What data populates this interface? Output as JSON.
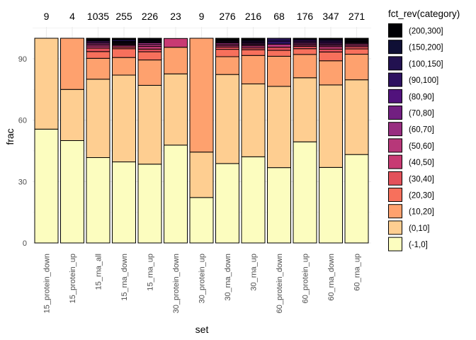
{
  "chart_data": {
    "type": "bar",
    "stacked": true,
    "xlabel": "set",
    "ylabel": "frac",
    "ylim": [
      0,
      100
    ],
    "yticks": [
      0,
      30,
      60,
      90
    ],
    "grid": true,
    "legend_position": "right",
    "legend_title": "fct_rev(category)",
    "categories": [
      "15_protein_down",
      "15_protein_up",
      "15_rna_all",
      "15_rna_down",
      "15_rna_up",
      "30_protein_down",
      "30_protein_up",
      "30_rna_down",
      "30_rna_up",
      "60_protein_down",
      "60_protein_up",
      "60_rna_down",
      "60_rna_up"
    ],
    "top_labels": [
      "9",
      "4",
      "1035",
      "255",
      "226",
      "23",
      "9",
      "276",
      "216",
      "68",
      "176",
      "347",
      "271"
    ],
    "series": [
      {
        "name": "(-1,0]",
        "color": "#FCFDBF",
        "values": [
          55.6,
          50.0,
          41.7,
          39.6,
          38.5,
          47.8,
          22.2,
          38.8,
          42.1,
          36.8,
          49.4,
          36.9,
          43.2
        ]
      },
      {
        "name": "(0,10]",
        "color": "#FECE91",
        "values": [
          44.4,
          25.0,
          38.3,
          42.4,
          38.5,
          34.8,
          22.2,
          43.5,
          35.6,
          39.7,
          31.3,
          40.3,
          36.5
        ]
      },
      {
        "name": "(10,20]",
        "color": "#FEA16E",
        "values": [
          0,
          25.0,
          10.2,
          8.6,
          12.4,
          13.0,
          55.6,
          8.7,
          13.9,
          14.7,
          11.4,
          11.8,
          12.5
        ]
      },
      {
        "name": "(20,30]",
        "color": "#F7705C",
        "values": [
          0,
          0,
          3.3,
          4.3,
          4.0,
          0,
          0,
          3.6,
          2.8,
          2.9,
          2.8,
          4.3,
          2.6
        ]
      },
      {
        "name": "(30,40]",
        "color": "#E3515A",
        "values": [
          0,
          0,
          1.7,
          0.8,
          1.3,
          0,
          0,
          1.1,
          0.9,
          1.5,
          1.1,
          1.4,
          1.1
        ]
      },
      {
        "name": "(40,50]",
        "color": "#C83A73",
        "values": [
          0,
          0,
          1.0,
          0.8,
          1.3,
          4.3,
          0,
          0.7,
          0.9,
          0,
          0.6,
          1.2,
          0.7
        ]
      },
      {
        "name": "(50,60]",
        "color": "#B73779",
        "values": [
          0,
          0,
          0.8,
          0.4,
          0.9,
          0,
          0,
          0.7,
          0.5,
          1.5,
          0.6,
          0.6,
          0.7
        ]
      },
      {
        "name": "(60,70]",
        "color": "#982D80",
        "values": [
          0,
          0,
          0.7,
          0.4,
          0.9,
          0,
          0,
          0.7,
          0.5,
          0,
          0.6,
          0.6,
          0.4
        ]
      },
      {
        "name": "(70,80]",
        "color": "#721F81",
        "values": [
          0,
          0,
          0.6,
          0.4,
          0.4,
          0,
          0,
          0.4,
          0.5,
          0,
          0.6,
          0.6,
          0.4
        ]
      },
      {
        "name": "(80,90]",
        "color": "#51127C",
        "values": [
          0,
          0,
          0.5,
          0.4,
          0.4,
          0,
          0,
          0.4,
          0.5,
          0,
          0.6,
          0.6,
          0.4
        ]
      },
      {
        "name": "(90,100]",
        "color": "#2D1160",
        "values": [
          0,
          0,
          0.4,
          0.4,
          0.4,
          0,
          0,
          0.4,
          0.5,
          1.5,
          0,
          0.6,
          0.4
        ]
      },
      {
        "name": "(100,150]",
        "color": "#221150",
        "values": [
          0,
          0,
          0.4,
          0.8,
          0.4,
          0,
          0,
          0.4,
          0.5,
          1.4,
          0.6,
          0.6,
          0.4
        ]
      },
      {
        "name": "(150,200]",
        "color": "#0F0F35",
        "values": [
          0,
          0,
          0.2,
          0.4,
          0.5,
          0,
          0,
          0.3,
          0.4,
          0,
          0,
          0.2,
          0.4
        ]
      },
      {
        "name": "(200,300]",
        "color": "#000004",
        "values": [
          0,
          0,
          0.2,
          0.3,
          0.1,
          0,
          0,
          0.3,
          0.4,
          0,
          0.4,
          0.3,
          0.3
        ]
      }
    ]
  }
}
